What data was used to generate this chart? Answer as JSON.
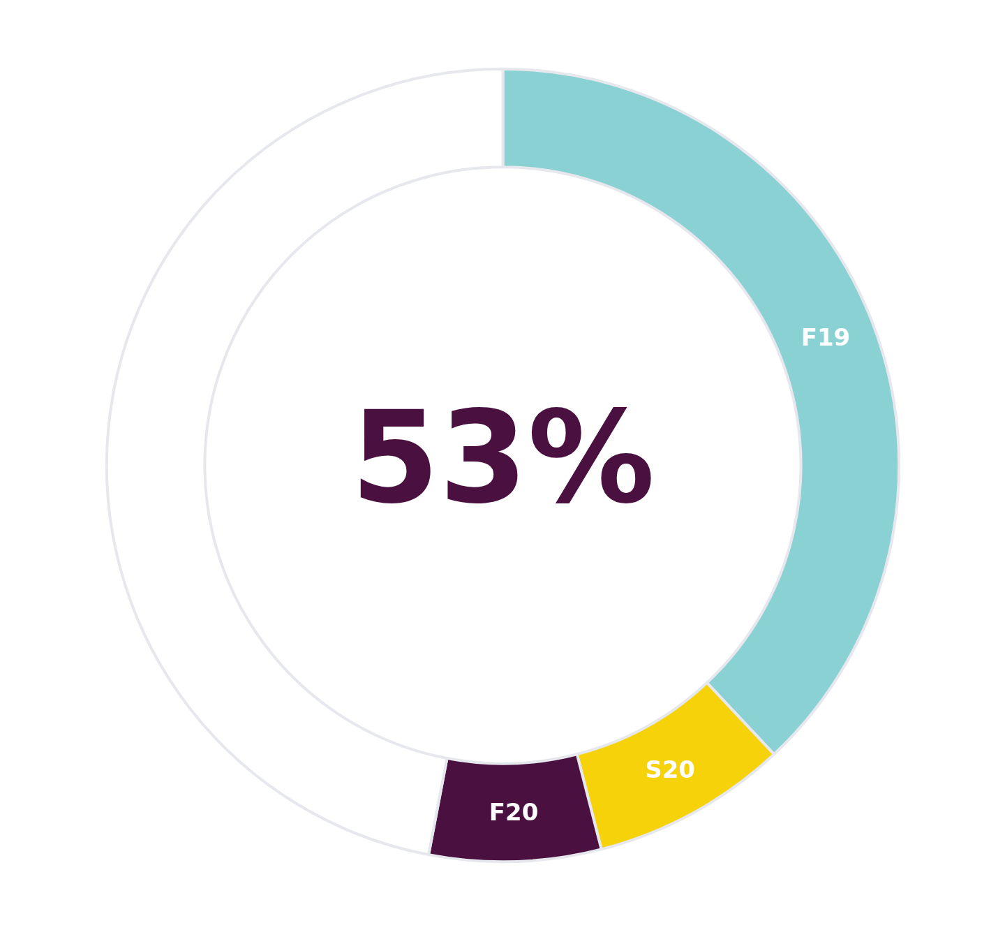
{
  "chart_data": {
    "type": "donut",
    "categories": [
      "F19",
      "S20",
      "F20",
      null
    ],
    "values": [
      38,
      8,
      7,
      47
    ],
    "colors": [
      "#8ad1d4",
      "#f5d20a",
      "#4a1040",
      "#ffffff"
    ],
    "annotations": [
      "53%"
    ]
  }
}
